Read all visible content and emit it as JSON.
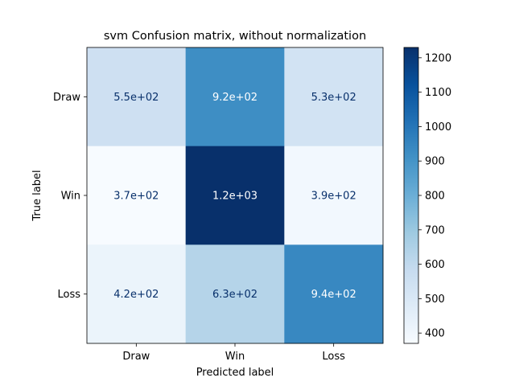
{
  "chart_data": {
    "type": "heatmap",
    "title": "svm Confusion matrix, without normalization",
    "xlabel": "Predicted label",
    "ylabel": "True label",
    "x_categories": [
      "Draw",
      "Win",
      "Loss"
    ],
    "y_categories": [
      "Draw",
      "Win",
      "Loss"
    ],
    "values": [
      [
        550,
        920,
        530
      ],
      [
        370,
        1230,
        390
      ],
      [
        420,
        630,
        940
      ]
    ],
    "cell_labels": [
      [
        "5.5e+02",
        "9.2e+02",
        "5.3e+02"
      ],
      [
        "3.7e+02",
        "1.2e+03",
        "3.9e+02"
      ],
      [
        "4.2e+02",
        "6.3e+02",
        "9.4e+02"
      ]
    ],
    "colormap": "Blues",
    "color_range": [
      370,
      1230
    ],
    "colorbar_ticks": [
      400,
      500,
      600,
      700,
      800,
      900,
      1000,
      1100,
      1200
    ],
    "colorbar_tick_labels": [
      "400",
      "500",
      "600",
      "700",
      "800",
      "900",
      "1000",
      "1100",
      "1200"
    ],
    "text_color_light": "#ffffff",
    "text_color_dark": "#08306b",
    "grid": false
  }
}
